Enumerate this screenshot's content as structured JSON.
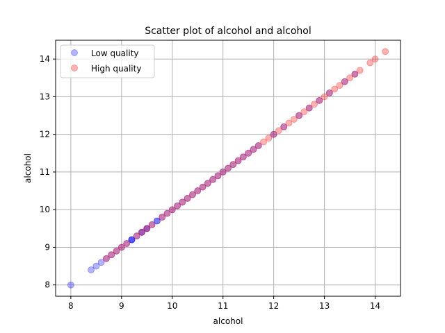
{
  "chart_data": {
    "type": "scatter",
    "title": "Scatter plot of alcohol and alcohol",
    "xlabel": "alcohol",
    "ylabel": "alcohol",
    "xlim": [
      7.7,
      14.5
    ],
    "ylim": [
      7.7,
      14.5
    ],
    "xticks": [
      8,
      9,
      10,
      11,
      12,
      13,
      14
    ],
    "yticks": [
      8,
      9,
      10,
      11,
      12,
      13,
      14
    ],
    "grid": true,
    "legend_position": "top-left",
    "series": [
      {
        "name": "Low quality",
        "color": "#0000ff",
        "alpha": 0.3,
        "x": [
          8.0,
          8.4,
          8.5,
          8.6,
          8.7,
          8.8,
          8.9,
          9.0,
          9.1,
          9.2,
          9.2,
          9.2,
          9.3,
          9.4,
          9.4,
          9.5,
          9.5,
          9.6,
          9.7,
          9.7,
          9.8,
          9.9,
          10.0,
          10.1,
          10.2,
          10.3,
          10.4,
          10.5,
          10.6,
          10.7,
          10.8,
          10.9,
          11.0,
          11.1,
          11.2,
          11.3,
          11.4,
          11.5,
          11.6,
          11.7,
          12.0,
          12.2,
          12.5,
          12.7,
          12.9,
          13.1,
          13.4,
          13.6
        ],
        "y": [
          8.0,
          8.4,
          8.5,
          8.6,
          8.7,
          8.8,
          8.9,
          9.0,
          9.1,
          9.2,
          9.2,
          9.2,
          9.3,
          9.4,
          9.4,
          9.5,
          9.5,
          9.6,
          9.7,
          9.7,
          9.8,
          9.9,
          10.0,
          10.1,
          10.2,
          10.3,
          10.4,
          10.5,
          10.6,
          10.7,
          10.8,
          10.9,
          11.0,
          11.1,
          11.2,
          11.3,
          11.4,
          11.5,
          11.6,
          11.7,
          12.0,
          12.2,
          12.5,
          12.7,
          12.9,
          13.1,
          13.4,
          13.6
        ]
      },
      {
        "name": "High quality",
        "color": "#ff0000",
        "alpha": 0.3,
        "x": [
          8.7,
          8.8,
          8.9,
          9.0,
          9.1,
          9.3,
          9.4,
          9.5,
          9.6,
          9.8,
          9.9,
          10.0,
          10.1,
          10.2,
          10.3,
          10.4,
          10.5,
          10.6,
          10.7,
          10.8,
          10.9,
          11.0,
          11.1,
          11.2,
          11.3,
          11.4,
          11.5,
          11.6,
          11.7,
          11.8,
          11.9,
          12.0,
          12.1,
          12.2,
          12.3,
          12.4,
          12.5,
          12.6,
          12.7,
          12.8,
          12.9,
          13.0,
          13.1,
          13.2,
          13.3,
          13.4,
          13.5,
          13.6,
          13.7,
          13.9,
          14.0,
          14.2
        ],
        "y": [
          8.7,
          8.8,
          8.9,
          9.0,
          9.1,
          9.3,
          9.4,
          9.5,
          9.6,
          9.8,
          9.9,
          10.0,
          10.1,
          10.2,
          10.3,
          10.4,
          10.5,
          10.6,
          10.7,
          10.8,
          10.9,
          11.0,
          11.1,
          11.2,
          11.3,
          11.4,
          11.5,
          11.6,
          11.7,
          11.8,
          11.9,
          12.0,
          12.1,
          12.2,
          12.3,
          12.4,
          12.5,
          12.6,
          12.7,
          12.8,
          12.9,
          13.0,
          13.1,
          13.2,
          13.3,
          13.4,
          13.5,
          13.6,
          13.7,
          13.9,
          14.0,
          14.2
        ]
      }
    ]
  }
}
